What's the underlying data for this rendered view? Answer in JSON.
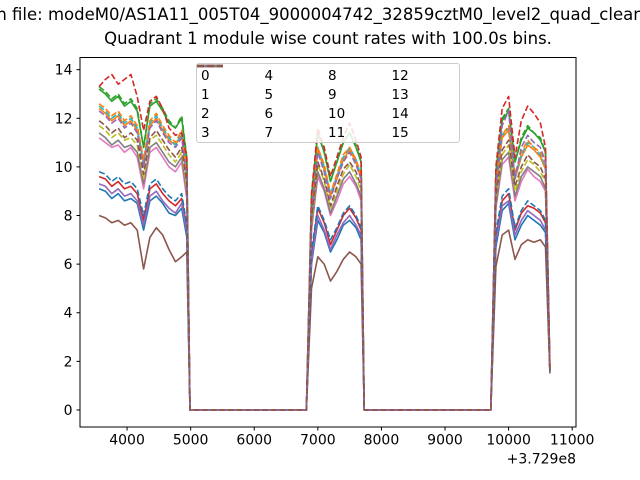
{
  "title": "n file: modeM0/AS1A11_005T04_9000004742_32859cztM0_level2_quad_clean",
  "subtitle": "Quadrant 1 module wise count rates with 100.0s bins.",
  "chart_data": {
    "type": "line",
    "title": "Quadrant 1 module wise count rates with 100.0s bins.",
    "xlabel": "",
    "ylabel": "",
    "x_offset_label": "+3.729e8",
    "xlim": [
      3260,
      11060
    ],
    "ylim": [
      -0.7,
      14.5
    ],
    "xticks": [
      4000,
      5000,
      6000,
      7000,
      8000,
      9000,
      10000,
      11000
    ],
    "yticks": [
      0,
      2,
      4,
      6,
      8,
      10,
      12,
      14
    ],
    "grid": false,
    "legend": {
      "position": "upper center",
      "ncol": 4
    },
    "x": [
      3560,
      3660,
      3760,
      3860,
      3960,
      4060,
      4160,
      4260,
      4360,
      4460,
      4560,
      4660,
      4760,
      4860,
      4940,
      4990,
      6820,
      6900,
      7000,
      7100,
      7200,
      7300,
      7400,
      7500,
      7600,
      7680,
      7730,
      9720,
      9800,
      9900,
      10000,
      10100,
      10200,
      10300,
      10400,
      10500,
      10580,
      10650
    ],
    "series": [
      {
        "name": "0",
        "color": "#1f77b4",
        "dash": false,
        "values": [
          9.1,
          9.0,
          8.7,
          8.9,
          8.6,
          8.7,
          8.5,
          7.4,
          8.6,
          8.8,
          8.5,
          8.1,
          8.0,
          8.3,
          7.1,
          0,
          0,
          6.0,
          7.8,
          7.3,
          6.5,
          7.0,
          7.6,
          7.8,
          7.5,
          7.0,
          0,
          0,
          6.7,
          8.2,
          8.5,
          7.0,
          7.6,
          8.0,
          7.8,
          7.6,
          7.3,
          1.6
        ]
      },
      {
        "name": "1",
        "color": "#ff7f0e",
        "dash": false,
        "values": [
          12.4,
          12.2,
          11.9,
          12.1,
          11.7,
          11.9,
          11.5,
          10.1,
          11.7,
          12.0,
          11.5,
          11.1,
          10.9,
          11.3,
          9.7,
          0,
          0,
          8.2,
          10.7,
          9.9,
          8.8,
          9.5,
          10.3,
          10.7,
          10.2,
          9.5,
          0,
          0,
          9.2,
          11.2,
          11.5,
          9.5,
          10.4,
          10.9,
          10.7,
          10.4,
          9.9,
          1.7
        ]
      },
      {
        "name": "2",
        "color": "#2ca02c",
        "dash": false,
        "values": [
          13.2,
          13.0,
          12.7,
          12.9,
          12.5,
          12.7,
          12.3,
          10.8,
          12.5,
          12.7,
          12.3,
          11.8,
          11.6,
          12.0,
          10.3,
          0,
          0,
          8.7,
          11.4,
          10.6,
          9.4,
          10.2,
          11.0,
          11.4,
          10.8,
          10.2,
          0,
          0,
          9.8,
          11.9,
          12.3,
          10.2,
          11.1,
          11.6,
          11.4,
          11.1,
          10.6,
          1.7
        ]
      },
      {
        "name": "3",
        "color": "#d62728",
        "dash": false,
        "values": [
          9.6,
          9.5,
          9.2,
          9.4,
          9.1,
          9.2,
          8.9,
          7.8,
          9.1,
          9.3,
          8.9,
          8.6,
          8.4,
          8.7,
          7.5,
          0,
          0,
          6.3,
          8.3,
          7.7,
          6.8,
          7.4,
          8.0,
          8.3,
          7.9,
          7.4,
          0,
          0,
          7.1,
          8.6,
          8.9,
          7.4,
          8.1,
          8.4,
          8.3,
          8.1,
          7.7,
          1.6
        ]
      },
      {
        "name": "4",
        "color": "#9467bd",
        "dash": false,
        "values": [
          9.3,
          9.2,
          8.9,
          9.1,
          8.8,
          8.9,
          8.6,
          7.6,
          8.8,
          9.0,
          8.6,
          8.3,
          8.1,
          8.5,
          7.3,
          0,
          0,
          6.1,
          8.0,
          7.4,
          6.6,
          7.2,
          7.7,
          8.0,
          7.6,
          7.2,
          0,
          0,
          6.9,
          8.4,
          8.6,
          7.2,
          7.8,
          8.2,
          8.0,
          7.8,
          7.4,
          1.6
        ]
      },
      {
        "name": "5",
        "color": "#8c564b",
        "dash": false,
        "values": [
          8.0,
          7.9,
          7.7,
          7.8,
          7.6,
          7.7,
          7.4,
          5.8,
          7.1,
          7.5,
          7.2,
          6.6,
          6.1,
          6.3,
          6.5,
          0,
          0,
          5.0,
          6.3,
          6.0,
          5.3,
          5.7,
          6.2,
          6.5,
          6.3,
          6.0,
          0,
          0,
          5.9,
          7.2,
          7.4,
          6.2,
          6.8,
          7.0,
          6.9,
          7.0,
          6.7,
          1.5
        ]
      },
      {
        "name": "6",
        "color": "#e377c2",
        "dash": false,
        "values": [
          11.2,
          11.0,
          10.8,
          10.9,
          10.6,
          10.8,
          10.4,
          9.1,
          10.6,
          10.8,
          10.4,
          10.0,
          9.8,
          10.2,
          8.7,
          0,
          0,
          7.4,
          9.6,
          9.0,
          8.0,
          8.6,
          9.3,
          9.6,
          9.2,
          8.6,
          0,
          0,
          8.3,
          10.1,
          10.4,
          8.6,
          9.4,
          9.9,
          9.6,
          9.4,
          9.0,
          1.6
        ]
      },
      {
        "name": "7",
        "color": "#7f7f7f",
        "dash": false,
        "values": [
          11.4,
          11.2,
          10.9,
          11.1,
          10.8,
          10.9,
          10.6,
          9.3,
          10.8,
          11.0,
          10.6,
          10.2,
          10.0,
          10.4,
          8.9,
          0,
          0,
          7.5,
          9.8,
          9.1,
          8.1,
          8.8,
          9.5,
          9.8,
          9.3,
          8.8,
          0,
          0,
          8.4,
          10.3,
          10.6,
          8.8,
          9.6,
          10.0,
          9.8,
          9.6,
          9.1,
          1.6
        ]
      },
      {
        "name": "8",
        "color": "#bcbd22",
        "dash": true,
        "values": [
          11.7,
          11.5,
          11.2,
          11.4,
          11.1,
          11.2,
          10.9,
          9.5,
          11.1,
          11.3,
          10.9,
          10.5,
          10.2,
          10.6,
          9.1,
          0,
          0,
          7.7,
          10.1,
          9.4,
          8.3,
          9.0,
          9.7,
          10.1,
          9.6,
          9.0,
          0,
          0,
          8.7,
          10.5,
          10.9,
          9.0,
          9.8,
          10.3,
          10.1,
          9.8,
          9.4,
          1.6
        ]
      },
      {
        "name": "9",
        "color": "#17becf",
        "dash": true,
        "values": [
          12.5,
          12.3,
          12.0,
          12.2,
          11.8,
          12.0,
          11.6,
          10.2,
          11.8,
          12.1,
          11.6,
          11.2,
          10.9,
          11.4,
          9.8,
          0,
          0,
          8.3,
          10.8,
          10.0,
          8.9,
          9.6,
          10.4,
          10.8,
          10.3,
          9.6,
          0,
          0,
          9.3,
          11.3,
          11.6,
          9.6,
          10.5,
          11.0,
          10.8,
          10.5,
          10.0,
          1.7
        ]
      },
      {
        "name": "10",
        "color": "#1f77b4",
        "dash": true,
        "values": [
          9.8,
          9.7,
          9.4,
          9.6,
          9.3,
          9.4,
          9.1,
          8.0,
          9.3,
          9.5,
          9.1,
          8.8,
          8.6,
          8.9,
          7.6,
          0,
          0,
          6.5,
          8.4,
          7.8,
          7.0,
          7.5,
          8.1,
          8.4,
          8.0,
          7.5,
          0,
          0,
          7.3,
          8.8,
          9.1,
          7.5,
          8.2,
          8.6,
          8.4,
          8.2,
          7.8,
          1.6
        ]
      },
      {
        "name": "11",
        "color": "#ff7f0e",
        "dash": true,
        "values": [
          12.6,
          12.4,
          12.1,
          12.3,
          11.9,
          12.1,
          11.7,
          10.3,
          11.9,
          12.2,
          11.7,
          11.3,
          11.0,
          11.5,
          9.8,
          0,
          0,
          8.3,
          10.8,
          10.1,
          8.9,
          9.7,
          10.5,
          10.8,
          10.3,
          9.7,
          0,
          0,
          9.3,
          11.3,
          11.7,
          9.7,
          10.6,
          11.1,
          10.8,
          10.6,
          10.1,
          1.7
        ]
      },
      {
        "name": "12",
        "color": "#2ca02c",
        "dash": true,
        "values": [
          13.3,
          13.1,
          12.8,
          13.0,
          12.6,
          12.8,
          12.4,
          10.8,
          12.6,
          12.8,
          12.4,
          11.9,
          11.6,
          12.1,
          10.4,
          0,
          0,
          8.8,
          11.4,
          10.6,
          9.4,
          10.2,
          11.0,
          11.4,
          10.9,
          10.2,
          0,
          0,
          9.8,
          12.0,
          12.4,
          10.2,
          11.2,
          11.7,
          11.4,
          11.2,
          10.6,
          1.7
        ]
      },
      {
        "name": "13",
        "color": "#d62728",
        "dash": true,
        "values": [
          13.3,
          13.6,
          13.8,
          13.4,
          13.6,
          13.8,
          12.9,
          11.5,
          12.7,
          12.9,
          12.4,
          11.6,
          11.3,
          11.4,
          10.4,
          0,
          0,
          8.9,
          11.6,
          10.8,
          9.6,
          10.4,
          11.2,
          11.8,
          11.1,
          10.4,
          0,
          0,
          10.0,
          12.4,
          12.9,
          10.4,
          11.9,
          12.5,
          12.2,
          11.8,
          10.8,
          1.8
        ]
      },
      {
        "name": "14",
        "color": "#9467bd",
        "dash": true,
        "values": [
          12.3,
          12.1,
          11.8,
          12.0,
          11.6,
          11.8,
          11.4,
          10.0,
          11.6,
          11.9,
          11.4,
          11.0,
          10.8,
          11.2,
          9.6,
          0,
          0,
          8.1,
          10.6,
          9.8,
          8.7,
          9.5,
          10.2,
          10.6,
          10.1,
          9.5,
          0,
          0,
          9.1,
          11.7,
          12.3,
          9.5,
          10.8,
          11.3,
          11.0,
          10.8,
          10.2,
          1.7
        ]
      },
      {
        "name": "15",
        "color": "#8c564b",
        "dash": true,
        "values": [
          11.9,
          11.7,
          11.4,
          11.6,
          11.2,
          11.4,
          11.1,
          9.7,
          11.2,
          11.5,
          11.1,
          10.7,
          10.4,
          10.8,
          9.3,
          0,
          0,
          7.9,
          10.2,
          9.5,
          8.4,
          9.2,
          9.9,
          10.2,
          9.8,
          9.2,
          0,
          0,
          8.8,
          10.7,
          11.1,
          9.2,
          10.0,
          10.5,
          10.2,
          10.0,
          9.5,
          1.6
        ]
      }
    ]
  }
}
